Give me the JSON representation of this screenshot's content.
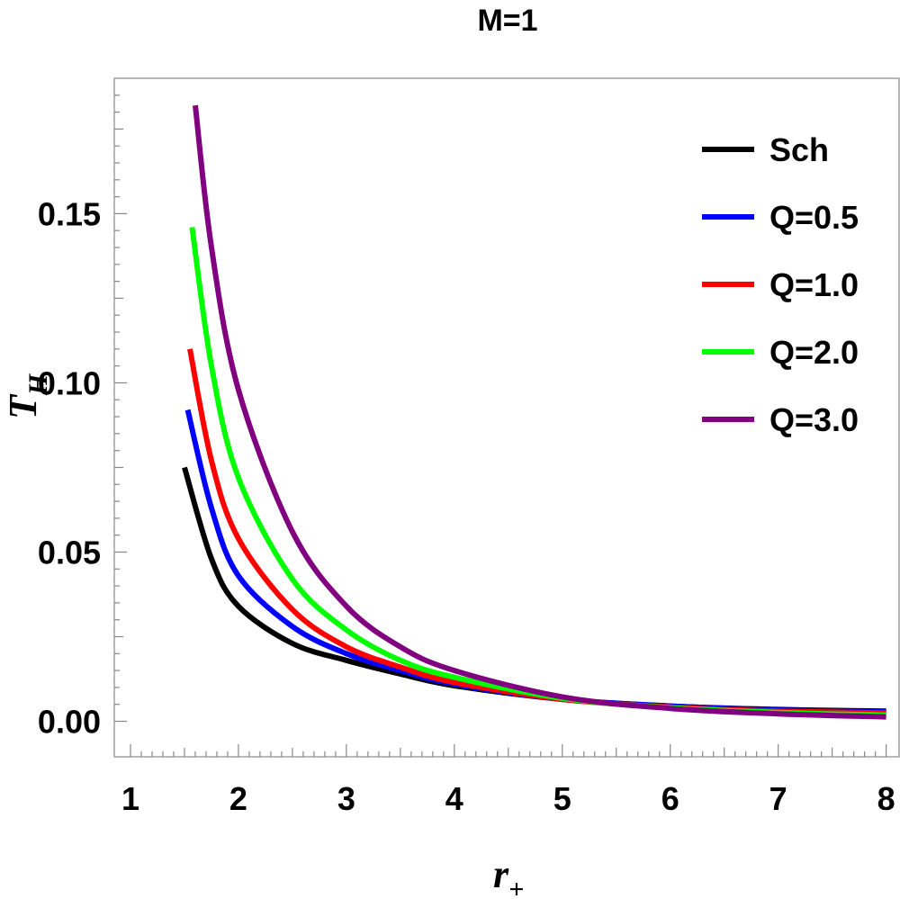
{
  "chart_data": {
    "type": "line",
    "title": "M=1",
    "xlabel": {
      "main": "r",
      "sub": "+"
    },
    "ylabel": {
      "main": "T",
      "sub": "H"
    },
    "xlim": [
      0.85,
      8.12
    ],
    "ylim": [
      -0.0105,
      0.19
    ],
    "xticks": [
      1,
      2,
      3,
      4,
      5,
      6,
      7,
      8
    ],
    "yticks": [
      0.0,
      0.05,
      0.1,
      0.15
    ],
    "ytick_labels": [
      "0.00",
      "0.05",
      "0.10",
      "0.15"
    ],
    "legend_position": "top-right",
    "series": [
      {
        "name": "Sch",
        "color": "#000000",
        "x": [
          1.5,
          1.75,
          2,
          2.5,
          3,
          3.5,
          4,
          5,
          6,
          7,
          8
        ],
        "y": [
          0.075,
          0.048,
          0.034,
          0.023,
          0.018,
          0.014,
          0.0105,
          0.0065,
          0.0045,
          0.0035,
          0.003
        ]
      },
      {
        "name": "Q=0.5",
        "color": "#0000ff",
        "x": [
          1.53,
          1.75,
          2,
          2.5,
          3,
          3.5,
          4,
          5,
          6,
          7,
          8
        ],
        "y": [
          0.092,
          0.063,
          0.043,
          0.028,
          0.02,
          0.015,
          0.011,
          0.0065,
          0.0045,
          0.0033,
          0.0028
        ]
      },
      {
        "name": "Q=1.0",
        "color": "#ff0000",
        "x": [
          1.55,
          1.75,
          2,
          2.5,
          3,
          3.5,
          4,
          5,
          6,
          7,
          8
        ],
        "y": [
          0.11,
          0.077,
          0.054,
          0.033,
          0.022,
          0.016,
          0.0115,
          0.0065,
          0.0042,
          0.003,
          0.0025
        ]
      },
      {
        "name": "Q=2.0",
        "color": "#00ff00",
        "x": [
          1.57,
          1.75,
          2,
          2.5,
          3,
          3.5,
          4,
          5,
          6,
          7,
          8
        ],
        "y": [
          0.146,
          0.105,
          0.072,
          0.042,
          0.027,
          0.018,
          0.013,
          0.0068,
          0.004,
          0.0026,
          0.0018
        ]
      },
      {
        "name": "Q=3.0",
        "color": "#800080",
        "x": [
          1.6,
          1.75,
          2,
          2.5,
          3,
          3.5,
          4,
          5,
          6,
          7,
          8
        ],
        "y": [
          0.182,
          0.14,
          0.098,
          0.056,
          0.034,
          0.022,
          0.015,
          0.0072,
          0.0038,
          0.0022,
          0.0013
        ]
      }
    ]
  }
}
